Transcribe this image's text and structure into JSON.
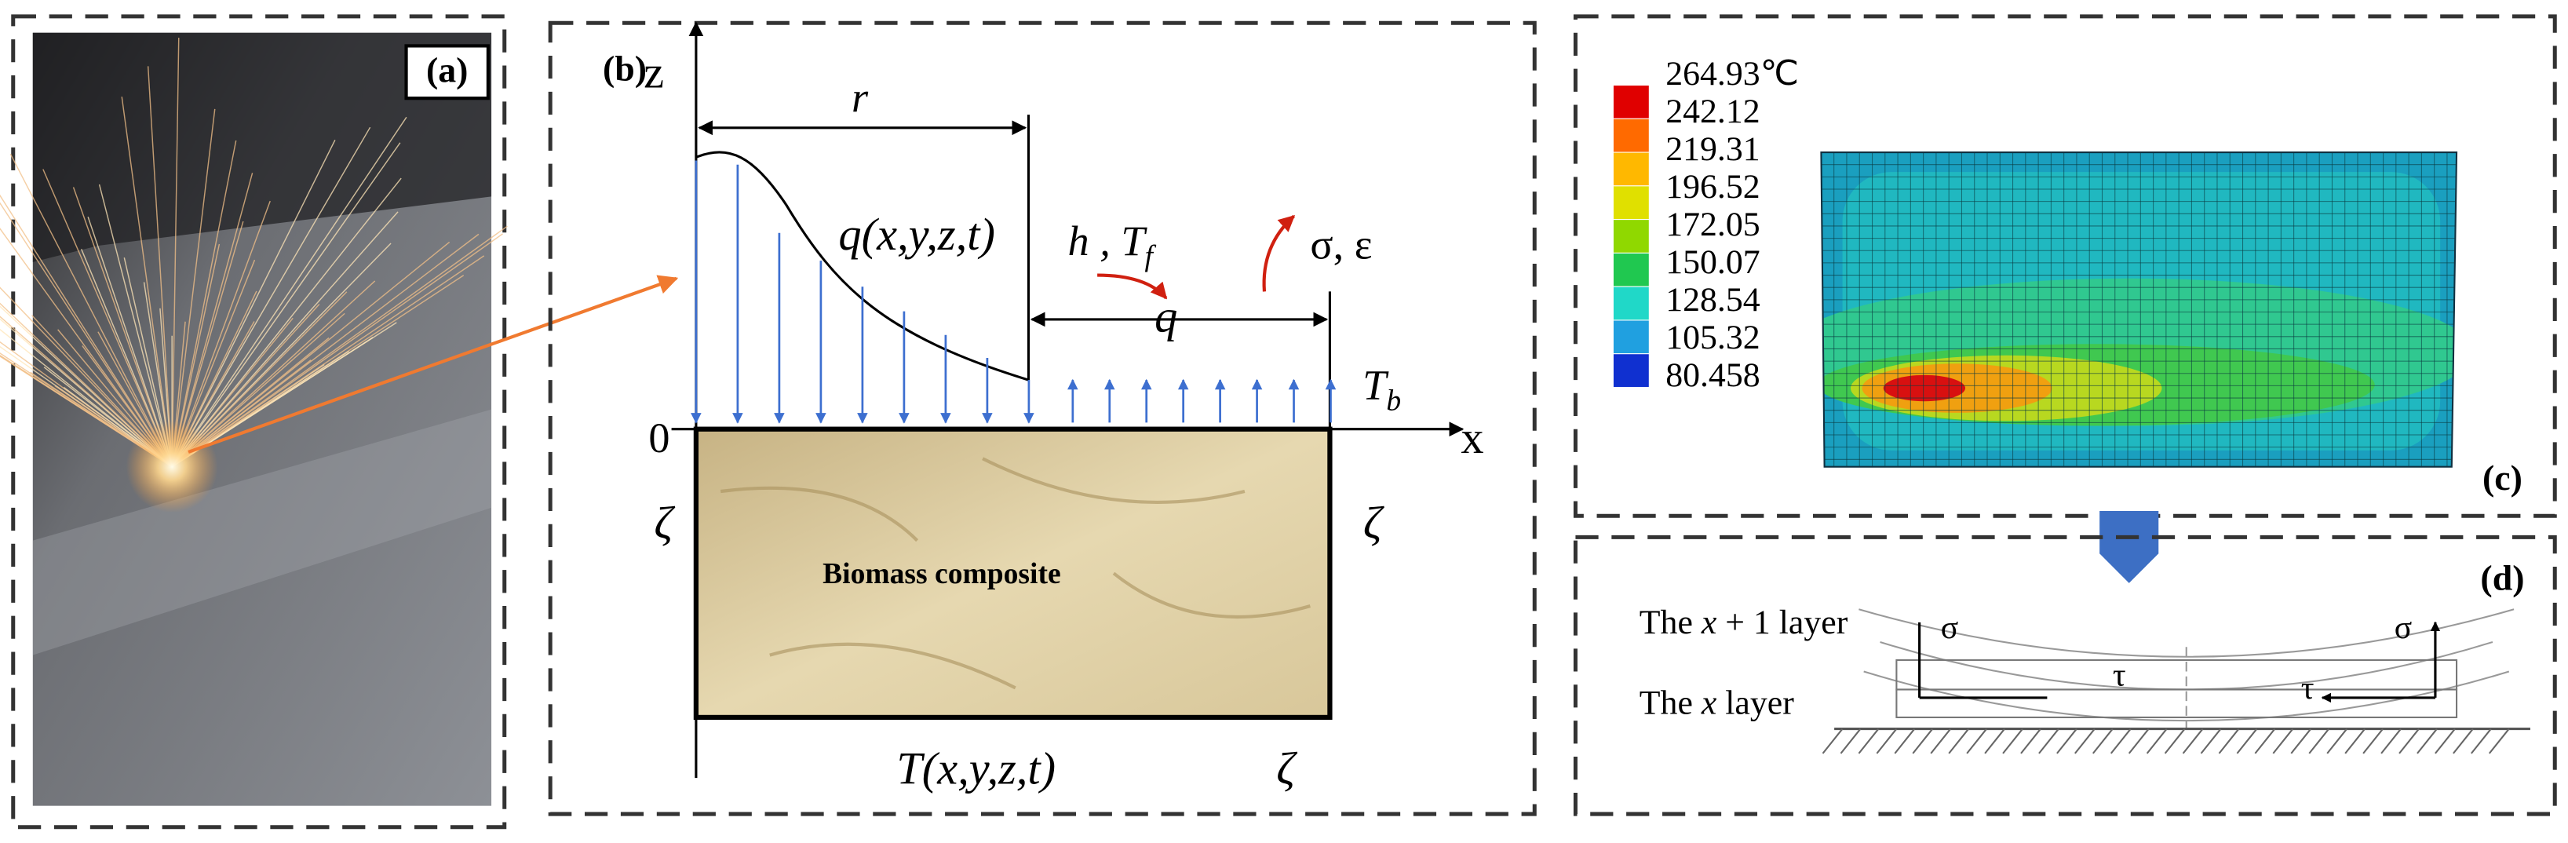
{
  "panels": {
    "a": {
      "label": "(a)"
    },
    "b": {
      "label": "(b)",
      "z_axis": "z",
      "x_axis": "x",
      "origin": "0",
      "radius": "r",
      "heat_flux": "q(x,y,z,t)",
      "convection": {
        "text": "h , T",
        "sub": "f"
      },
      "flux": "q",
      "stress_strain": "σ, ε",
      "base_temp": {
        "text": "T",
        "sub": "b"
      },
      "boundary": [
        "ζ",
        "ζ",
        "ζ"
      ],
      "material": "Biomass composite",
      "temperature": "T(x,y,z,t)"
    },
    "c": {
      "label": "(c)",
      "legend": [
        "264.93℃",
        "242.12",
        "219.31",
        "196.52",
        "172.05",
        "150.07",
        "128.54",
        "105.32",
        "80.458"
      ]
    },
    "d": {
      "label": "(d)",
      "upper_layer": {
        "pre": "The ",
        "var": "x",
        "post": " + 1 layer"
      },
      "lower_layer": {
        "pre": "The ",
        "var": "x",
        "post": "  layer"
      },
      "stress": [
        "σ",
        "σ"
      ],
      "shear": [
        "τ",
        "τ"
      ]
    }
  }
}
